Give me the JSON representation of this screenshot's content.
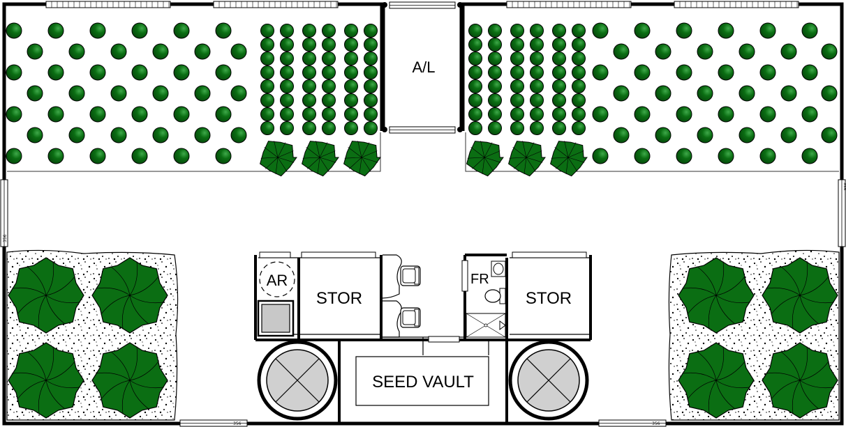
{
  "colors": {
    "plant": "#0b6e13",
    "plant_highlight": "#3fa94a",
    "wall": "#000000",
    "floor": "#ffffff",
    "tank": "#cfcfcf",
    "appliance": "#c8c8c8"
  },
  "rooms": {
    "airlock": "A/L",
    "air_recycler": "AR",
    "storage_left": "STOR",
    "storage_right": "STOR",
    "restroom": "FR",
    "seed_vault": "SEED VAULT"
  },
  "window_tag": "356",
  "icons": [
    "plant-dot-icon",
    "plant-bush-icon",
    "tree-icon",
    "tank-icon",
    "chair-icon",
    "toilet-icon",
    "sink-icon",
    "shower-icon"
  ]
}
